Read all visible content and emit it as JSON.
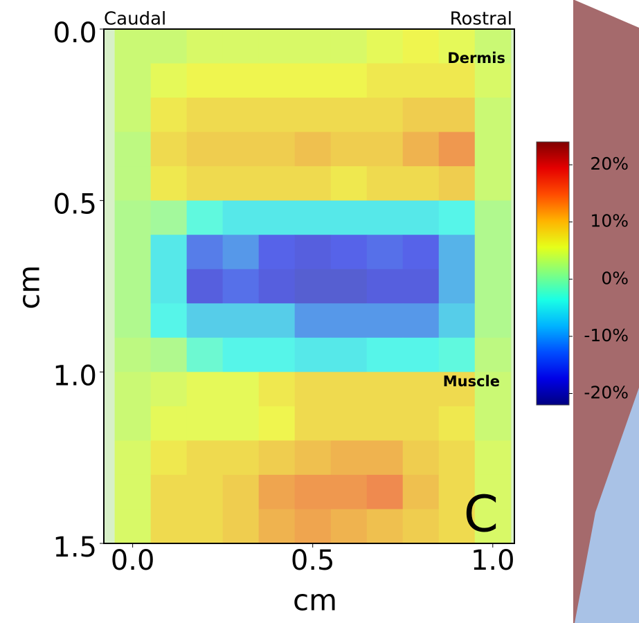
{
  "chart_data": {
    "type": "heatmap",
    "xlabel": "cm",
    "ylabel": "cm",
    "annotations": [
      "Caudal",
      "Rostral",
      "Dermis",
      "Muscle",
      "C"
    ],
    "x": [
      0.0,
      0.1,
      0.2,
      0.3,
      0.4,
      0.5,
      0.6,
      0.7,
      0.8,
      0.9,
      1.0
    ],
    "y": [
      0.05,
      0.15,
      0.25,
      0.35,
      0.45,
      0.55,
      0.65,
      0.75,
      0.85,
      0.95,
      1.05,
      1.15,
      1.25,
      1.35,
      1.45
    ],
    "z": [
      [
        4,
        4,
        5,
        5,
        5,
        5,
        5,
        6,
        7,
        6,
        4
      ],
      [
        4,
        6,
        7,
        7,
        7,
        7,
        7,
        8,
        8,
        8,
        5
      ],
      [
        4,
        8,
        9,
        9,
        9,
        9,
        9,
        9,
        10,
        10,
        4
      ],
      [
        3,
        9,
        10,
        10,
        10,
        11,
        10,
        10,
        12,
        14,
        4
      ],
      [
        3,
        8,
        9,
        9,
        9,
        9,
        8,
        9,
        9,
        10,
        4
      ],
      [
        2,
        1,
        -4,
        -6,
        -6,
        -6,
        -6,
        -6,
        -6,
        -5,
        2
      ],
      [
        2,
        -6,
        -14,
        -12,
        -16,
        -17,
        -16,
        -15,
        -16,
        -10,
        2
      ],
      [
        2,
        -6,
        -17,
        -15,
        -17,
        -18,
        -18,
        -17,
        -17,
        -10,
        2
      ],
      [
        2,
        -5,
        -8,
        -8,
        -8,
        -12,
        -12,
        -12,
        -12,
        -8,
        2
      ],
      [
        3,
        2,
        -3,
        -5,
        -5,
        -6,
        -6,
        -5,
        -5,
        -4,
        3
      ],
      [
        4,
        5,
        6,
        6,
        8,
        9,
        9,
        9,
        9,
        9,
        4
      ],
      [
        4,
        6,
        6,
        6,
        7,
        9,
        9,
        9,
        9,
        8,
        4
      ],
      [
        5,
        8,
        9,
        9,
        10,
        11,
        12,
        12,
        10,
        9,
        5
      ],
      [
        5,
        9,
        9,
        10,
        13,
        14,
        14,
        15,
        11,
        9,
        5
      ],
      [
        5,
        9,
        9,
        10,
        12,
        13,
        12,
        11,
        10,
        9,
        5
      ]
    ],
    "colormap": "jet",
    "xlim": [
      -0.08,
      1.06
    ],
    "ylim": [
      0,
      1.5
    ],
    "xticks": [
      {
        "value": 0,
        "label": "0.0"
      },
      0.5,
      {
        "value": 1,
        "label": "1.0"
      }
    ],
    "yticks": [
      {
        "value": 0,
        "label": "0.0"
      },
      0.5,
      {
        "value": 1,
        "label": "1.0"
      },
      1.5
    ],
    "clim": [
      -22,
      24
    ],
    "cticks": [
      {
        "value": 20,
        "label": "20%"
      },
      {
        "value": 10,
        "label": "10%"
      },
      {
        "value": 0,
        "label": "0%"
      },
      {
        "value": -10,
        "label": "-10%"
      },
      {
        "value": -20,
        "label": "-20%"
      }
    ]
  }
}
